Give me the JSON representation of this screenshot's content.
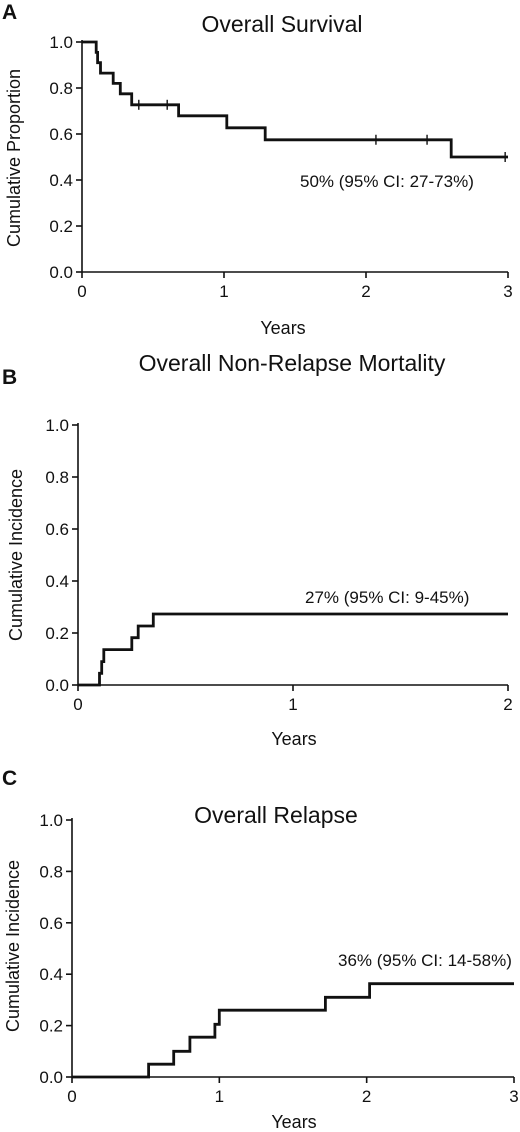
{
  "chart_data": [
    {
      "panel": "A",
      "type": "line",
      "step": true,
      "title": "Overall Survival",
      "xlabel": "Years",
      "ylabel": "Cumulative Proportion",
      "xlim": [
        0,
        3
      ],
      "ylim": [
        0,
        1
      ],
      "xticks": [
        "0",
        "1",
        "2",
        "3"
      ],
      "yticks": [
        "0.0",
        "0.2",
        "0.4",
        "0.6",
        "0.8",
        "1.0"
      ],
      "annotation": "50% (95% CI: 27-73%)",
      "series": [
        {
          "x": [
            0,
            0.1,
            0.11,
            0.13,
            0.22,
            0.27,
            0.35,
            0.68,
            1.02,
            1.29,
            2.6,
            3.0
          ],
          "y": [
            1.0,
            0.955,
            0.91,
            0.865,
            0.82,
            0.775,
            0.727,
            0.679,
            0.627,
            0.575,
            0.5,
            0.5
          ]
        }
      ],
      "censor_marks": [
        {
          "x": 0.4,
          "y": 0.727
        },
        {
          "x": 0.6,
          "y": 0.727
        },
        {
          "x": 2.07,
          "y": 0.575
        },
        {
          "x": 2.43,
          "y": 0.575
        },
        {
          "x": 2.98,
          "y": 0.5
        }
      ],
      "grid": false
    },
    {
      "panel": "B",
      "type": "line",
      "step": true,
      "title": "Overall Non-Relapse Mortality",
      "xlabel": "Years",
      "ylabel": "Cumulative Incidence",
      "xlim": [
        0,
        2
      ],
      "ylim": [
        0,
        1
      ],
      "xticks": [
        "0",
        "1",
        "2"
      ],
      "yticks": [
        "0.0",
        "0.2",
        "0.4",
        "0.6",
        "0.8",
        "1.0"
      ],
      "annotation": "27% (95% CI: 9-45%)",
      "series": [
        {
          "x": [
            0,
            0.1,
            0.11,
            0.12,
            0.25,
            0.28,
            0.35,
            2.0
          ],
          "y": [
            0,
            0.045,
            0.09,
            0.136,
            0.182,
            0.227,
            0.273,
            0.273
          ]
        }
      ],
      "grid": false
    },
    {
      "panel": "C",
      "type": "line",
      "step": true,
      "title": "Overall Relapse",
      "xlabel": "Years",
      "ylabel": "Cumulative Incidence",
      "xlim": [
        0,
        3
      ],
      "ylim": [
        0,
        1
      ],
      "xticks": [
        "0",
        "1",
        "2",
        "3"
      ],
      "yticks": [
        "0.0",
        "0.2",
        "0.4",
        "0.6",
        "0.8",
        "1.0"
      ],
      "annotation": "36% (95% CI: 14-58%)",
      "series": [
        {
          "x": [
            0,
            0.52,
            0.69,
            0.8,
            0.97,
            1.0,
            1.72,
            2.02,
            3.0
          ],
          "y": [
            0,
            0.05,
            0.1,
            0.155,
            0.205,
            0.26,
            0.31,
            0.363,
            0.363
          ]
        }
      ],
      "grid": false
    }
  ]
}
